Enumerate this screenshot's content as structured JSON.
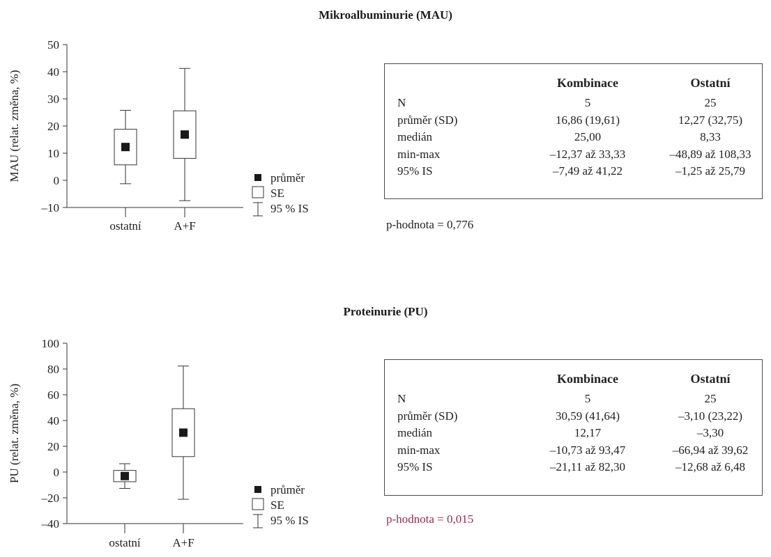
{
  "chart_data": [
    {
      "type": "box",
      "title": "Mikroalbuminurie (MAU)",
      "ylabel": "MAU (relat. změna, %)",
      "ylim": [
        -10,
        50
      ],
      "yticks": [
        "50",
        "40",
        "30",
        "20",
        "10",
        "0",
        "–10"
      ],
      "ytick_values": [
        50,
        40,
        30,
        20,
        10,
        0,
        -10
      ],
      "categories": [
        "ostatní",
        "A+F"
      ],
      "series": [
        {
          "category": "ostatní",
          "mean": 12.27,
          "se_low": 5.7,
          "se_high": 18.8,
          "ci_low": -1.25,
          "ci_high": 25.79
        },
        {
          "category": "A+F",
          "mean": 16.86,
          "se_low": 8.1,
          "se_high": 25.6,
          "ci_low": -7.49,
          "ci_high": 41.22
        }
      ],
      "legend": [
        "průměr",
        "SE",
        "95 % IS"
      ],
      "table": {
        "headers": [
          "",
          "Kombinace",
          "Ostatní"
        ],
        "rows": [
          [
            "N",
            "5",
            "25"
          ],
          [
            "průměr (SD)",
            "16,86 (19,61)",
            "12,27 (32,75)"
          ],
          [
            "medián",
            "25,00",
            "8,33"
          ],
          [
            "min-max",
            "–12,37 až 33,33",
            "–48,89 až 108,33"
          ],
          [
            "95% IS",
            "–7,49 až 41,22",
            "–1,25 až 25,79"
          ]
        ]
      },
      "pvalue": "p-hodnota = 0,776",
      "pvalue_color": "#222222"
    },
    {
      "type": "box",
      "title": "Proteinurie (PU)",
      "ylabel": "PU (relat. změna, %)",
      "ylim": [
        -40,
        100
      ],
      "yticks": [
        "100",
        "80",
        "60",
        "40",
        "20",
        "0",
        "–20",
        "–40"
      ],
      "ytick_values": [
        100,
        80,
        60,
        40,
        20,
        0,
        -20,
        -40
      ],
      "categories": [
        "ostatní",
        "A+F"
      ],
      "series": [
        {
          "category": "ostatní",
          "mean": -3.1,
          "se_low": -7.5,
          "se_high": 1.3,
          "ci_low": -12.68,
          "ci_high": 6.48
        },
        {
          "category": "A+F",
          "mean": 30.59,
          "se_low": 12.0,
          "se_high": 49.2,
          "ci_low": -21.11,
          "ci_high": 82.3
        }
      ],
      "legend": [
        "průměr",
        "SE",
        "95 % IS"
      ],
      "table": {
        "headers": [
          "",
          "Kombinace",
          "Ostatní"
        ],
        "rows": [
          [
            "N",
            "5",
            "25"
          ],
          [
            "průměr (SD)",
            "30,59 (41,64)",
            "–3,10 (23,22)"
          ],
          [
            "medián",
            "12,17",
            "–3,30"
          ],
          [
            "min-max",
            "–10,73 až 93,47",
            "–66,94 až 39,62"
          ],
          [
            "95% IS",
            "–21,11 až 82,30",
            "–12,68 až 6,48"
          ]
        ]
      },
      "pvalue": "p-hodnota = 0,015",
      "pvalue_color": "#9b2c4f"
    }
  ]
}
